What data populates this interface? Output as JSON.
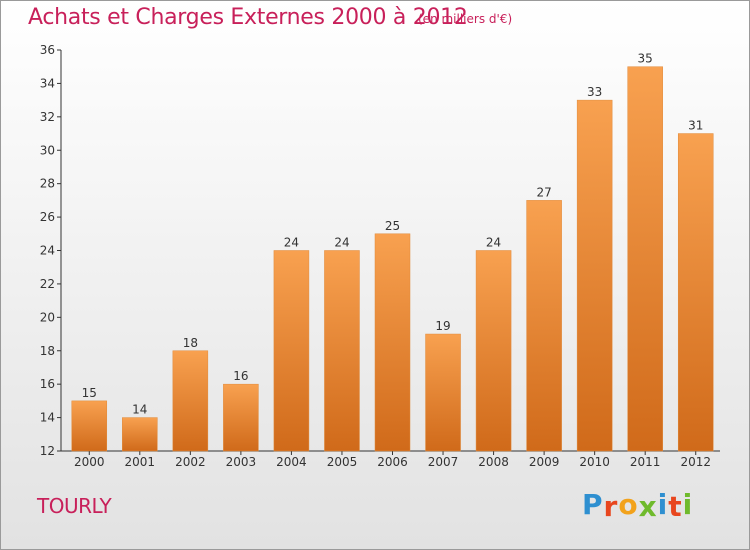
{
  "chart_data": {
    "type": "bar",
    "title": "Achats et Charges Externes 2000 à 2012",
    "subtitle": "(en milliers d'€)",
    "categories": [
      "2000",
      "2001",
      "2002",
      "2003",
      "2004",
      "2005",
      "2006",
      "2007",
      "2008",
      "2009",
      "2010",
      "2011",
      "2012"
    ],
    "values": [
      15,
      14,
      18,
      16,
      24,
      24,
      25,
      19,
      24,
      27,
      33,
      35,
      31
    ],
    "ylim": [
      12,
      36
    ],
    "yticks": [
      12,
      14,
      16,
      18,
      20,
      22,
      24,
      26,
      28,
      30,
      32,
      34,
      36
    ],
    "grid": false,
    "bar_color_top": "#f8a150",
    "bar_color_bottom": "#d06a1a"
  },
  "place": "TOURLY",
  "logo": {
    "text": "Proxiti",
    "letters": [
      {
        "char": "P",
        "color": "#2e8fd0"
      },
      {
        "char": "r",
        "color": "#e8461e"
      },
      {
        "char": "o",
        "color": "#f2a21b"
      },
      {
        "char": "x",
        "color": "#6fba2c"
      },
      {
        "char": "i",
        "color": "#2e8fd0"
      },
      {
        "char": "t",
        "color": "#e8461e"
      },
      {
        "char": "i",
        "color": "#6fba2c"
      }
    ]
  },
  "colors": {
    "title": "#c8205a",
    "axis": "#333333"
  }
}
